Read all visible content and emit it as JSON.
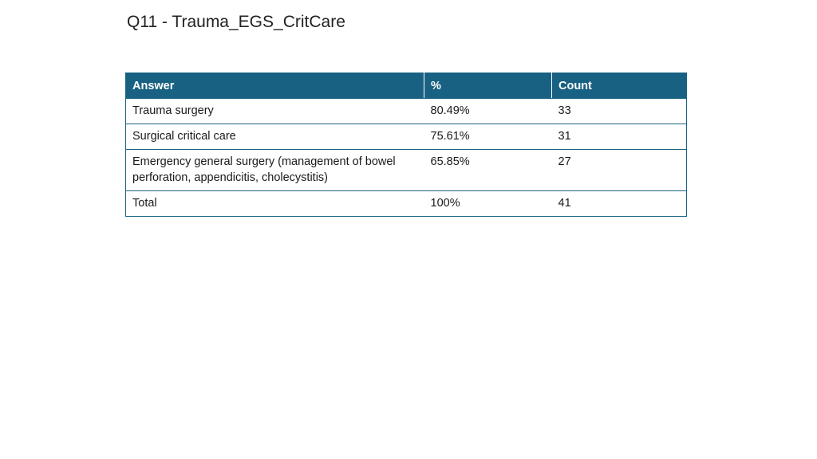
{
  "title": "Q11 - Trauma_EGS_CritCare",
  "table": {
    "headers": [
      "Answer",
      "%",
      "Count"
    ],
    "rows": [
      [
        "Trauma surgery",
        "80.49%",
        "33"
      ],
      [
        "Surgical critical care",
        "75.61%",
        "31"
      ],
      [
        "Emergency general surgery (management of bowel perforation, appendicitis, cholecystitis)",
        "65.85%",
        "27"
      ],
      [
        "Total",
        "100%",
        "41"
      ]
    ]
  },
  "colors": {
    "header_background": "#186182",
    "header_text": "#ffffff",
    "border": "#186182"
  }
}
